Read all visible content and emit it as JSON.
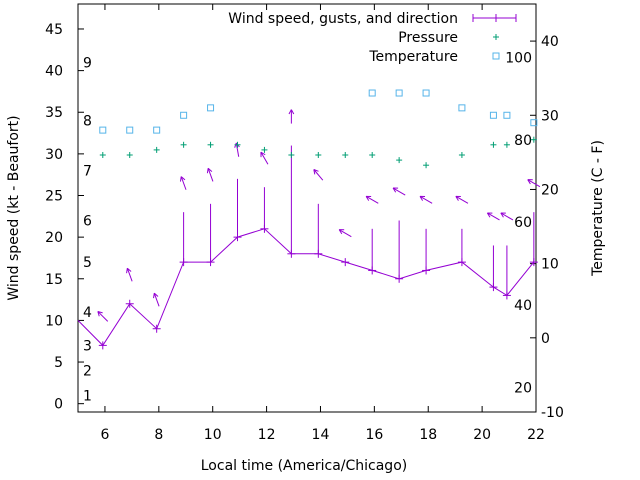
{
  "chart_data": {
    "type": "line",
    "xlabel": "Local time (America/Chicago)",
    "ylabel_left": "Wind speed (kt - Beaufort)",
    "ylabel_right": "Temperature (C - F)",
    "xlim": [
      5,
      22
    ],
    "ylim_left": [
      -1,
      48
    ],
    "ylim_right": [
      -10,
      45
    ],
    "x_ticks": [
      6,
      8,
      10,
      12,
      14,
      16,
      18,
      20,
      22
    ],
    "y_ticks_left": [
      0,
      5,
      10,
      15,
      20,
      25,
      30,
      35,
      40,
      45
    ],
    "y_ticks_right": [
      -10,
      0,
      10,
      20,
      30,
      40
    ],
    "beaufort_labels": [
      {
        "label": "1",
        "kt": 1
      },
      {
        "label": "2",
        "kt": 4
      },
      {
        "label": "3",
        "kt": 7
      },
      {
        "label": "4",
        "kt": 11
      },
      {
        "label": "5",
        "kt": 17
      },
      {
        "label": "6",
        "kt": 22
      },
      {
        "label": "7",
        "kt": 28
      },
      {
        "label": "8",
        "kt": 34
      },
      {
        "label": "9",
        "kt": 41
      }
    ],
    "fahrenheit_labels": [
      {
        "label": "20",
        "c": -6.7
      },
      {
        "label": "40",
        "c": 4.4
      },
      {
        "label": "60",
        "c": 15.6
      },
      {
        "label": "80",
        "c": 26.7
      },
      {
        "label": "100",
        "c": 37.8
      }
    ],
    "legend": [
      {
        "label": "Wind speed, gusts, and direction",
        "color": "#9400d3",
        "marker": "line-plus"
      },
      {
        "label": "Pressure",
        "color": "#009e73",
        "marker": "plus"
      },
      {
        "label": "Temperature",
        "color": "#56b4e9",
        "marker": "square"
      }
    ],
    "legend_position": "top-right",
    "wind": {
      "name": "Wind speed, gusts, and direction",
      "color": "#9400d3",
      "x": [
        5,
        5.92,
        6.92,
        7.92,
        8.92,
        9.92,
        10.92,
        11.92,
        12.92,
        13.92,
        14.92,
        15.92,
        16.92,
        17.92,
        19.25,
        20.42,
        20.92,
        21.92
      ],
      "speed": [
        10,
        7,
        12,
        9,
        17,
        17,
        20,
        21,
        18,
        18,
        17,
        16,
        15,
        16,
        17,
        14,
        13,
        17
      ],
      "gust": [
        null,
        null,
        null,
        null,
        23,
        24,
        27,
        26,
        31,
        24,
        null,
        21,
        22,
        21,
        21,
        19,
        19,
        23
      ],
      "dir_deg": [
        null,
        315,
        340,
        340,
        340,
        340,
        350,
        330,
        360,
        320,
        300,
        300,
        300,
        300,
        300,
        300,
        300,
        300
      ]
    },
    "pressure": {
      "name": "Pressure",
      "color": "#009e73",
      "x": [
        5.92,
        6.92,
        7.92,
        8.92,
        9.92,
        10.92,
        11.92,
        12.92,
        13.92,
        14.92,
        15.92,
        16.92,
        17.92,
        19.25,
        20.42,
        20.92,
        21.92
      ],
      "y": [
        30,
        30,
        30.1,
        30.2,
        30.2,
        30.2,
        30.1,
        30,
        30,
        30,
        30,
        29.9,
        29.8,
        30,
        30.2,
        30.2,
        30.3
      ]
    },
    "temperature": {
      "name": "Temperature",
      "color": "#56b4e9",
      "x": [
        5.92,
        6.92,
        7.92,
        8.92,
        9.92,
        15.92,
        16.92,
        17.92,
        19.25,
        20.42,
        20.92,
        21.92
      ],
      "y": [
        28,
        28,
        28,
        30,
        31,
        33,
        33,
        33,
        31,
        30,
        30,
        29
      ]
    }
  }
}
